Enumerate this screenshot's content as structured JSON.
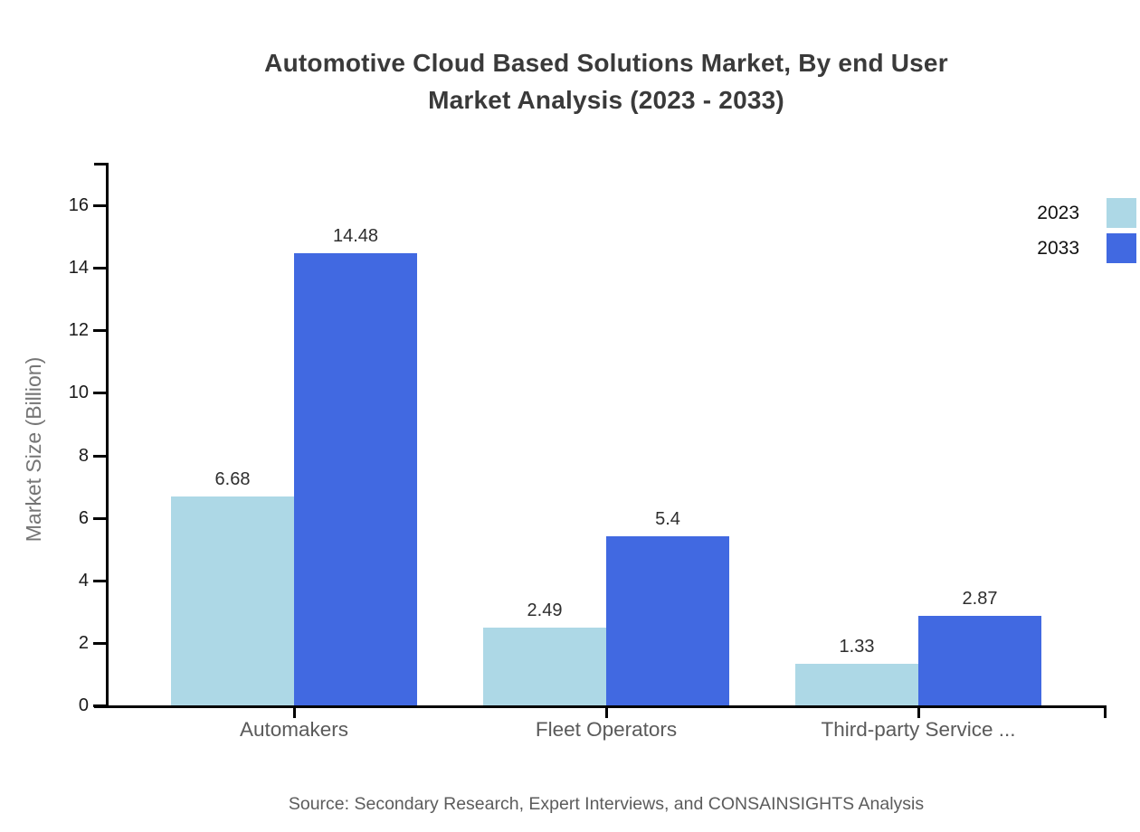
{
  "title": {
    "line1": "Automotive Cloud Based Solutions Market, By end User",
    "line2": "Market Analysis (2023 - 2033)"
  },
  "source_text": "Source: Secondary Research, Expert Interviews, and CONSAINSIGHTS Analysis",
  "colors": {
    "series_2023": "#ADD8E6",
    "series_2033": "#4169E1",
    "axis": "#000000",
    "title_text": "#3a3a3a",
    "category_text": "#5a5a5a",
    "value_label_text": "#2e2e2e",
    "source_text": "#5c5c5c",
    "ylabel_text": "#757575"
  },
  "legend": {
    "position": "top-right",
    "items": [
      {
        "label": "2023",
        "color": "#ADD8E6"
      },
      {
        "label": "2033",
        "color": "#4169E1"
      }
    ]
  },
  "chart_data": {
    "type": "bar",
    "title": "Automotive Cloud Based Solutions Market, By end User Market Analysis (2023 - 2033)",
    "categories": [
      "Automakers",
      "Fleet Operators",
      "Third-party Service ..."
    ],
    "series": [
      {
        "name": "2023",
        "color": "#ADD8E6",
        "values": [
          6.68,
          2.49,
          1.33
        ],
        "value_labels": [
          "6.68",
          "2.49",
          "1.33"
        ]
      },
      {
        "name": "2033",
        "color": "#4169E1",
        "values": [
          14.48,
          5.4,
          2.87
        ],
        "value_labels": [
          "14.48",
          "5.4",
          "2.87"
        ]
      }
    ],
    "xlabel": "",
    "ylabel": "Market Size (Billion)",
    "ylim": [
      0,
      16
    ],
    "yticks": [
      0,
      2,
      4,
      6,
      8,
      10,
      12,
      14,
      16
    ],
    "grid": false,
    "legend_position": "top-right"
  }
}
